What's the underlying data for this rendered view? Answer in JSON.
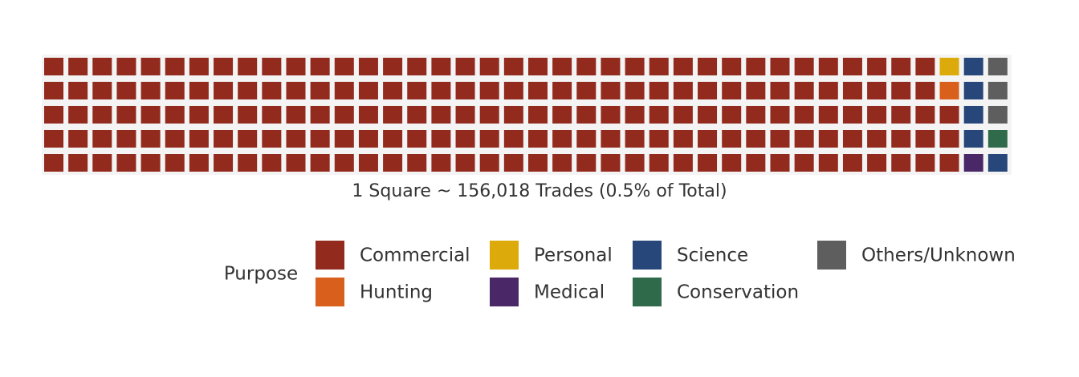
{
  "chart_data": {
    "type": "waffle",
    "caption": "1 Square ~ 156,018 Trades (0.5% of Total)",
    "legend_title": "Purpose",
    "rows": 5,
    "columns": 40,
    "categories": [
      "Commercial",
      "Hunting",
      "Personal",
      "Medical",
      "Science",
      "Conservation",
      "Others/Unknown"
    ],
    "values": [
      188,
      1,
      1,
      1,
      5,
      1,
      3
    ],
    "colors": [
      "#922a1e",
      "#d95f1c",
      "#dcaa0a",
      "#4a2868",
      "#27477a",
      "#2f6b4a",
      "#5e5e5e"
    ]
  }
}
